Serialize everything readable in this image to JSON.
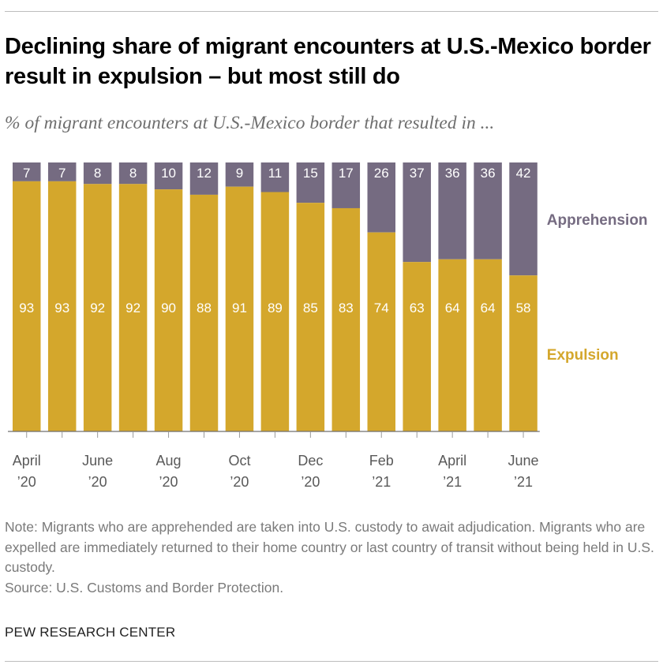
{
  "header": {
    "title": "Declining share of migrant encounters at U.S.-Mexico border result in expulsion – but most still do",
    "subtitle": "% of migrant encounters at U.S.-Mexico border that resulted in ..."
  },
  "chart_data": {
    "type": "bar",
    "stacked": true,
    "categories": [
      "Apr 2020",
      "May 2020",
      "Jun 2020",
      "Jul 2020",
      "Aug 2020",
      "Sep 2020",
      "Oct 2020",
      "Nov 2020",
      "Dec 2020",
      "Jan 2021",
      "Feb 2021",
      "Mar 2021",
      "Apr 2021",
      "May 2021",
      "Jun 2021"
    ],
    "series": [
      {
        "name": "Expulsion",
        "color": "#d4a72c",
        "values": [
          93,
          93,
          92,
          92,
          90,
          88,
          91,
          89,
          85,
          83,
          74,
          63,
          64,
          64,
          58
        ]
      },
      {
        "name": "Apprehension",
        "color": "#756b81",
        "values": [
          7,
          7,
          8,
          8,
          10,
          12,
          9,
          11,
          15,
          17,
          26,
          37,
          36,
          36,
          42
        ]
      }
    ],
    "tick_labels": [
      {
        "index": 0,
        "line1": "April",
        "line2": "’20"
      },
      {
        "index": 2,
        "line1": "June",
        "line2": "’20"
      },
      {
        "index": 4,
        "line1": "Aug",
        "line2": "’20"
      },
      {
        "index": 6,
        "line1": "Oct",
        "line2": "’20"
      },
      {
        "index": 8,
        "line1": "Dec",
        "line2": "’20"
      },
      {
        "index": 10,
        "line1": "Feb",
        "line2": "’21"
      },
      {
        "index": 12,
        "line1": "April",
        "line2": "’21"
      },
      {
        "index": 14,
        "line1": "June",
        "line2": "’21"
      }
    ],
    "ylim": [
      0,
      100
    ],
    "grid": false,
    "legend": "direct labels at right end of bars"
  },
  "footer": {
    "note": "Note: Migrants who are apprehended are taken into U.S. custody to await adjudication. Migrants who are expelled are immediately returned to their home country or last country of transit without being held in U.S. custody.",
    "source": "Source: U.S. Customs and Border Protection.",
    "branding": "PEW RESEARCH CENTER"
  }
}
